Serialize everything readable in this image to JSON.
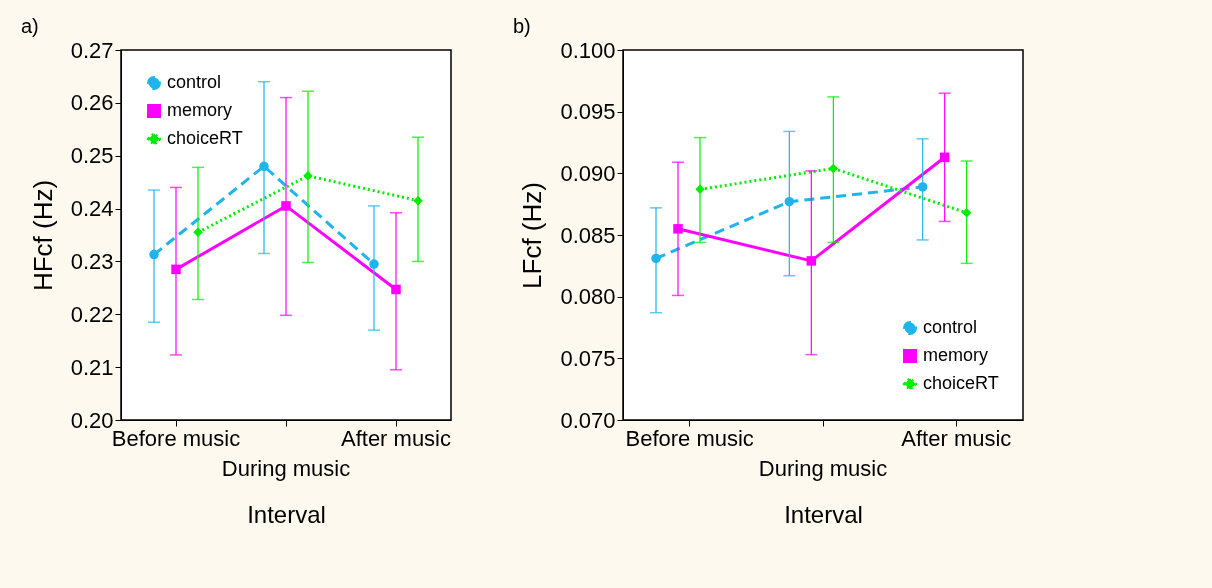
{
  "chart_data": [
    {
      "type": "line",
      "title": "a)",
      "xlabel": "Interval",
      "ylabel": "HFcf (Hz)",
      "categories": [
        "Before music",
        "During music",
        "After music"
      ],
      "ylim": [
        0.2,
        0.27
      ],
      "yticks": [
        {
          "value": 0.2,
          "label": "0.20"
        },
        {
          "value": 0.21,
          "label": "0.21"
        },
        {
          "value": 0.22,
          "label": "0.22"
        },
        {
          "value": 0.23,
          "label": "0.23"
        },
        {
          "value": 0.24,
          "label": "0.24"
        },
        {
          "value": 0.25,
          "label": "0.25"
        },
        {
          "value": 0.26,
          "label": "0.26"
        },
        {
          "value": 0.27,
          "label": "0.27"
        }
      ],
      "grid": false,
      "legend": "top left",
      "series": [
        {
          "name": "control",
          "color": "#1eb4ec",
          "marker": "circle",
          "line_style": "dashed",
          "values": [
            0.2313,
            0.248,
            0.2295
          ],
          "errors": [
            [
              0.2185,
              0.2435
            ],
            [
              0.2315,
              0.264
            ],
            [
              0.217,
              0.2405
            ]
          ]
        },
        {
          "name": "memory",
          "color": "#ff00ff",
          "marker": "square",
          "line_style": "solid",
          "values": [
            0.2285,
            0.2405,
            0.2247
          ],
          "errors": [
            [
              0.2123,
              0.244
            ],
            [
              0.2198,
              0.261
            ],
            [
              0.2095,
              0.2392
            ]
          ]
        },
        {
          "name": "choiceRT",
          "color": "#00ee00",
          "marker": "diamond",
          "line_style": "dotted",
          "values": [
            0.2355,
            0.2462,
            0.2415
          ],
          "errors": [
            [
              0.2228,
              0.2478
            ],
            [
              0.2298,
              0.2622
            ],
            [
              0.23,
              0.2535
            ]
          ]
        }
      ]
    },
    {
      "type": "line",
      "title": "b)",
      "xlabel": "Interval",
      "ylabel": "LFcf (Hz)",
      "categories": [
        "Before music",
        "During music",
        "After music"
      ],
      "ylim": [
        0.07,
        0.1
      ],
      "yticks": [
        {
          "value": 0.07,
          "label": "0.070"
        },
        {
          "value": 0.075,
          "label": "0.075"
        },
        {
          "value": 0.08,
          "label": "0.080"
        },
        {
          "value": 0.085,
          "label": "0.085"
        },
        {
          "value": 0.09,
          "label": "0.090"
        },
        {
          "value": 0.095,
          "label": "0.095"
        },
        {
          "value": 0.1,
          "label": "0.100"
        }
      ],
      "grid": false,
      "legend": "bottom right",
      "series": [
        {
          "name": "control",
          "color": "#1eb4ec",
          "marker": "circle",
          "line_style": "dashed",
          "values": [
            0.0831,
            0.0877,
            0.0889
          ],
          "errors": [
            [
              0.0787,
              0.0872
            ],
            [
              0.0817,
              0.0934
            ],
            [
              0.0846,
              0.0928
            ]
          ]
        },
        {
          "name": "memory",
          "color": "#ff00ff",
          "marker": "square",
          "line_style": "solid",
          "values": [
            0.0855,
            0.0829,
            0.0913
          ],
          "errors": [
            [
              0.0801,
              0.0909
            ],
            [
              0.0753,
              0.0902
            ],
            [
              0.0861,
              0.0965
            ]
          ]
        },
        {
          "name": "choiceRT",
          "color": "#00ee00",
          "marker": "diamond",
          "line_style": "dotted",
          "values": [
            0.0887,
            0.0904,
            0.0868
          ],
          "errors": [
            [
              0.0844,
              0.0929
            ],
            [
              0.0844,
              0.0962
            ],
            [
              0.0827,
              0.091
            ]
          ]
        }
      ]
    }
  ]
}
